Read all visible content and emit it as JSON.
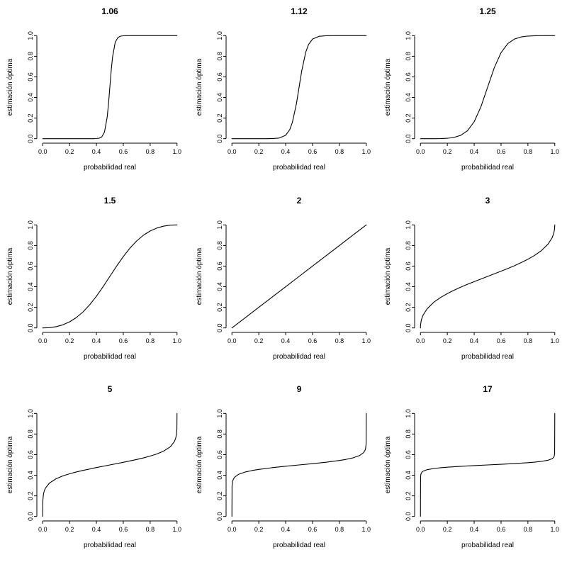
{
  "figure": {
    "background": "#ffffff",
    "line_color": "#000000",
    "text_color": "#000000",
    "grid_rows": 3,
    "grid_cols": 3
  },
  "axes": {
    "x_label": "probabilidad real",
    "y_label": "estimación óptima",
    "ticks": [
      0,
      0.2,
      0.4,
      0.6,
      0.8,
      1.0
    ],
    "tick_labels": [
      "0.0",
      "0.2",
      "0.4",
      "0.6",
      "0.8",
      "1.0"
    ],
    "range": [
      0,
      1
    ],
    "grid": false,
    "legend": "none"
  },
  "chart_data": [
    {
      "type": "line",
      "title": "1.06",
      "xlabel": "probabilidad real",
      "ylabel": "estimación óptima",
      "xlim": [
        0,
        1
      ],
      "ylim": [
        0,
        1
      ],
      "points": [
        [
          0,
          0
        ],
        [
          0.05,
          0
        ],
        [
          0.1,
          0
        ],
        [
          0.15,
          0
        ],
        [
          0.2,
          0
        ],
        [
          0.25,
          0
        ],
        [
          0.3,
          0
        ],
        [
          0.35,
          0
        ],
        [
          0.38,
          0.0003
        ],
        [
          0.4,
          0.0012
        ],
        [
          0.42,
          0.0046
        ],
        [
          0.44,
          0.0177
        ],
        [
          0.46,
          0.0646
        ],
        [
          0.48,
          0.2085
        ],
        [
          0.49,
          0.3393
        ],
        [
          0.5,
          0.5
        ],
        [
          0.51,
          0.6607
        ],
        [
          0.52,
          0.7915
        ],
        [
          0.54,
          0.9354
        ],
        [
          0.56,
          0.9823
        ],
        [
          0.58,
          0.9954
        ],
        [
          0.6,
          0.9988
        ],
        [
          0.62,
          0.9997
        ],
        [
          0.65,
          0.9999
        ],
        [
          0.7,
          1
        ],
        [
          0.75,
          1
        ],
        [
          0.8,
          1
        ],
        [
          0.85,
          1
        ],
        [
          0.9,
          1
        ],
        [
          0.95,
          1
        ],
        [
          1,
          1
        ]
      ]
    },
    {
      "type": "line",
      "title": "1.12",
      "xlabel": "probabilidad real",
      "ylabel": "estimación óptima",
      "xlim": [
        0,
        1
      ],
      "ylim": [
        0,
        1
      ],
      "points": [
        [
          0,
          0
        ],
        [
          0.05,
          0
        ],
        [
          0.1,
          0
        ],
        [
          0.15,
          0
        ],
        [
          0.2,
          0
        ],
        [
          0.25,
          0.0001
        ],
        [
          0.3,
          0.0009
        ],
        [
          0.35,
          0.0057
        ],
        [
          0.4,
          0.033
        ],
        [
          0.43,
          0.0871
        ],
        [
          0.45,
          0.158
        ],
        [
          0.48,
          0.3392
        ],
        [
          0.5,
          0.5
        ],
        [
          0.52,
          0.6608
        ],
        [
          0.55,
          0.842
        ],
        [
          0.57,
          0.9129
        ],
        [
          0.6,
          0.967
        ],
        [
          0.65,
          0.9943
        ],
        [
          0.7,
          0.9991
        ],
        [
          0.75,
          0.9999
        ],
        [
          0.8,
          1
        ],
        [
          0.85,
          1
        ],
        [
          0.9,
          1
        ],
        [
          0.95,
          1
        ],
        [
          1,
          1
        ]
      ]
    },
    {
      "type": "line",
      "title": "1.25",
      "xlabel": "probabilidad real",
      "ylabel": "estimación óptima",
      "xlim": [
        0,
        1
      ],
      "ylim": [
        0,
        1
      ],
      "points": [
        [
          0,
          0
        ],
        [
          0.05,
          0
        ],
        [
          0.1,
          0.0002
        ],
        [
          0.15,
          0.001
        ],
        [
          0.2,
          0.0039
        ],
        [
          0.25,
          0.0122
        ],
        [
          0.3,
          0.0326
        ],
        [
          0.35,
          0.0776
        ],
        [
          0.4,
          0.1648
        ],
        [
          0.45,
          0.3094
        ],
        [
          0.5,
          0.5
        ],
        [
          0.55,
          0.6906
        ],
        [
          0.6,
          0.8352
        ],
        [
          0.65,
          0.9224
        ],
        [
          0.7,
          0.9674
        ],
        [
          0.75,
          0.9878
        ],
        [
          0.8,
          0.9961
        ],
        [
          0.85,
          0.999
        ],
        [
          0.9,
          0.9998
        ],
        [
          0.95,
          1
        ],
        [
          1,
          1
        ]
      ]
    },
    {
      "type": "line",
      "title": "1.5",
      "xlabel": "probabilidad real",
      "ylabel": "estimación óptima",
      "xlim": [
        0,
        1
      ],
      "ylim": [
        0,
        1
      ],
      "points": [
        [
          0,
          0
        ],
        [
          0.05,
          0.0028
        ],
        [
          0.1,
          0.0122
        ],
        [
          0.15,
          0.0302
        ],
        [
          0.2,
          0.0588
        ],
        [
          0.25,
          0.1
        ],
        [
          0.3,
          0.1552
        ],
        [
          0.35,
          0.2248
        ],
        [
          0.4,
          0.3077
        ],
        [
          0.45,
          0.401
        ],
        [
          0.5,
          0.5
        ],
        [
          0.55,
          0.599
        ],
        [
          0.6,
          0.6923
        ],
        [
          0.65,
          0.7752
        ],
        [
          0.7,
          0.8448
        ],
        [
          0.75,
          0.9
        ],
        [
          0.8,
          0.9412
        ],
        [
          0.85,
          0.9698
        ],
        [
          0.9,
          0.9878
        ],
        [
          0.95,
          0.9972
        ],
        [
          1,
          1
        ]
      ]
    },
    {
      "type": "line",
      "title": "2",
      "xlabel": "probabilidad real",
      "ylabel": "estimación óptima",
      "xlim": [
        0,
        1
      ],
      "ylim": [
        0,
        1
      ],
      "points": [
        [
          0,
          0
        ],
        [
          0.1,
          0.1
        ],
        [
          0.2,
          0.2
        ],
        [
          0.3,
          0.3
        ],
        [
          0.4,
          0.4
        ],
        [
          0.5,
          0.5
        ],
        [
          0.6,
          0.6
        ],
        [
          0.7,
          0.7
        ],
        [
          0.8,
          0.8
        ],
        [
          0.9,
          0.9
        ],
        [
          1,
          1
        ]
      ]
    },
    {
      "type": "line",
      "title": "3",
      "xlabel": "probabilidad real",
      "ylabel": "estimación óptima",
      "xlim": [
        0,
        1
      ],
      "ylim": [
        0,
        1
      ],
      "points": [
        [
          0,
          0
        ],
        [
          0.001,
          0.0307
        ],
        [
          0.005,
          0.0662
        ],
        [
          0.01,
          0.0913
        ],
        [
          0.02,
          0.125
        ],
        [
          0.05,
          0.1865
        ],
        [
          0.1,
          0.25
        ],
        [
          0.15,
          0.2958
        ],
        [
          0.2,
          0.3333
        ],
        [
          0.25,
          0.366
        ],
        [
          0.3,
          0.3956
        ],
        [
          0.35,
          0.4232
        ],
        [
          0.4,
          0.4495
        ],
        [
          0.5,
          0.5
        ],
        [
          0.6,
          0.5505
        ],
        [
          0.65,
          0.5768
        ],
        [
          0.7,
          0.6044
        ],
        [
          0.75,
          0.634
        ],
        [
          0.8,
          0.6667
        ],
        [
          0.85,
          0.7042
        ],
        [
          0.9,
          0.75
        ],
        [
          0.95,
          0.8135
        ],
        [
          0.98,
          0.875
        ],
        [
          0.99,
          0.9087
        ],
        [
          0.995,
          0.9338
        ],
        [
          0.999,
          0.9693
        ],
        [
          1,
          1
        ]
      ]
    },
    {
      "type": "line",
      "title": "5",
      "xlabel": "probabilidad real",
      "ylabel": "estimación óptima",
      "xlim": [
        0,
        1
      ],
      "ylim": [
        0,
        1
      ],
      "points": [
        [
          0,
          0
        ],
        [
          0.001,
          0.1511
        ],
        [
          0.005,
          0.2102
        ],
        [
          0.01,
          0.2407
        ],
        [
          0.02,
          0.2743
        ],
        [
          0.05,
          0.3239
        ],
        [
          0.1,
          0.366
        ],
        [
          0.15,
          0.3933
        ],
        [
          0.2,
          0.4142
        ],
        [
          0.25,
          0.4318
        ],
        [
          0.3,
          0.4472
        ],
        [
          0.4,
          0.4747
        ],
        [
          0.5,
          0.5
        ],
        [
          0.6,
          0.5253
        ],
        [
          0.7,
          0.5528
        ],
        [
          0.75,
          0.5682
        ],
        [
          0.8,
          0.5858
        ],
        [
          0.85,
          0.6067
        ],
        [
          0.9,
          0.634
        ],
        [
          0.95,
          0.6761
        ],
        [
          0.98,
          0.7257
        ],
        [
          0.99,
          0.7593
        ],
        [
          0.995,
          0.7898
        ],
        [
          0.999,
          0.8489
        ],
        [
          1,
          1
        ]
      ]
    },
    {
      "type": "line",
      "title": "9",
      "xlabel": "probabilidad real",
      "ylabel": "estimación óptima",
      "xlim": [
        0,
        1
      ],
      "ylim": [
        0,
        1
      ],
      "points": [
        [
          0,
          0
        ],
        [
          0.001,
          0.2966
        ],
        [
          0.005,
          0.3404
        ],
        [
          0.01,
          0.3602
        ],
        [
          0.02,
          0.3808
        ],
        [
          0.05,
          0.409
        ],
        [
          0.1,
          0.4318
        ],
        [
          0.15,
          0.446
        ],
        [
          0.2,
          0.4568
        ],
        [
          0.3,
          0.4735
        ],
        [
          0.4,
          0.4873
        ],
        [
          0.5,
          0.5
        ],
        [
          0.6,
          0.5127
        ],
        [
          0.7,
          0.5265
        ],
        [
          0.8,
          0.5432
        ],
        [
          0.85,
          0.554
        ],
        [
          0.9,
          0.5682
        ],
        [
          0.95,
          0.591
        ],
        [
          0.98,
          0.6192
        ],
        [
          0.99,
          0.6398
        ],
        [
          0.995,
          0.6596
        ],
        [
          0.999,
          0.7034
        ],
        [
          1,
          1
        ]
      ]
    },
    {
      "type": "line",
      "title": "17",
      "xlabel": "probabilidad real",
      "ylabel": "estimación óptima",
      "xlim": [
        0,
        1
      ],
      "ylim": [
        0,
        1
      ],
      "points": [
        [
          0,
          0
        ],
        [
          0.001,
          0.3937
        ],
        [
          0.005,
          0.418
        ],
        [
          0.01,
          0.4287
        ],
        [
          0.02,
          0.4395
        ],
        [
          0.05,
          0.4541
        ],
        [
          0.1,
          0.4657
        ],
        [
          0.15,
          0.4729
        ],
        [
          0.2,
          0.4783
        ],
        [
          0.3,
          0.4868
        ],
        [
          0.4,
          0.4937
        ],
        [
          0.5,
          0.5
        ],
        [
          0.6,
          0.5063
        ],
        [
          0.7,
          0.5132
        ],
        [
          0.8,
          0.5217
        ],
        [
          0.85,
          0.5271
        ],
        [
          0.9,
          0.5343
        ],
        [
          0.95,
          0.5459
        ],
        [
          0.98,
          0.5605
        ],
        [
          0.99,
          0.5713
        ],
        [
          0.995,
          0.582
        ],
        [
          0.999,
          0.6063
        ],
        [
          1,
          1
        ]
      ]
    }
  ]
}
